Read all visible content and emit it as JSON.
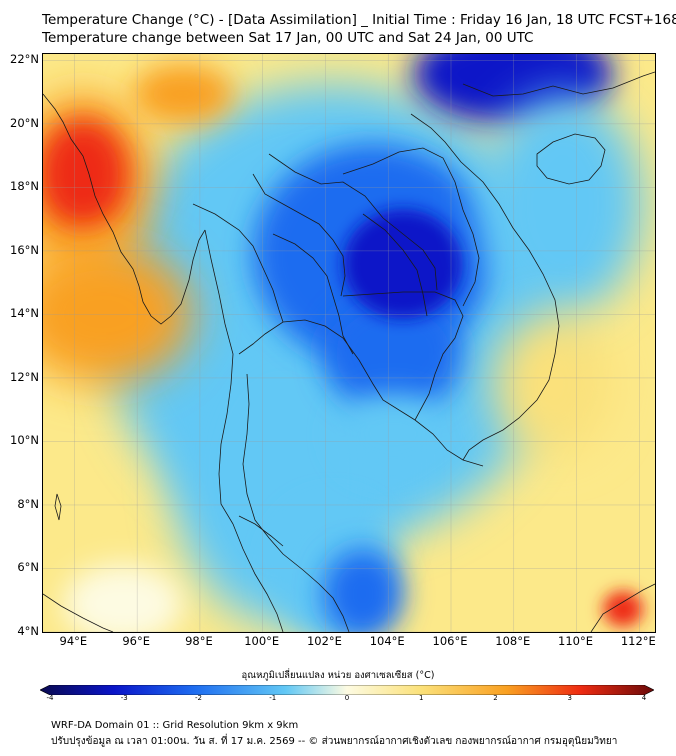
{
  "title": {
    "line1": "Temperature Change (°C) - [Data Assimilation] _ Initial Time : Friday 16 Jan, 18 UTC FCST+168",
    "line2": "Temperature change between Sat 17 Jan, 00 UTC and Sat 24 Jan, 00 UTC"
  },
  "map": {
    "lat_labels": [
      "22°N",
      "20°N",
      "18°N",
      "16°N",
      "14°N",
      "12°N",
      "10°N",
      "8°N",
      "6°N",
      "4°N"
    ],
    "lon_labels": [
      "94°E",
      "96°E",
      "98°E",
      "100°E",
      "102°E",
      "104°E",
      "106°E",
      "108°E",
      "110°E",
      "112°E"
    ],
    "lat_range": [
      4,
      22.2
    ],
    "lon_range": [
      93,
      112.5
    ],
    "colors": {
      "cold_dark": "#0a14c8",
      "cold": "#1e6cf0",
      "cool": "#62c8f5",
      "neutral": "#fdfbe2",
      "warm": "#fbe17a",
      "warmer": "#f9a022",
      "hot": "#ee2c12",
      "ocean_fill": "#fce98a",
      "coastline": "#1a1a1a",
      "grid": "#9a9a9a"
    }
  },
  "colorbar": {
    "label": "อุณหภูมิเปลี่ยนแปลง หน่วย องศาเซลเซียส (°C)",
    "ticks": [
      "-4",
      "-3",
      "-2",
      "-1",
      "0",
      "1",
      "2",
      "3",
      "4"
    ],
    "min": -4,
    "max": 4
  },
  "footer": {
    "line1": "WRF-DA Domain 01 :: Grid Resolution 9km x 9km",
    "line2": "ปรับปรุงข้อมูล ณ เวลา 01:00น. วัน ส. ที่ 17 ม.ค. 2569 -- © ส่วนพยากรณ์อากาศเชิงตัวเลข กองพยากรณ์อากาศ กรมอุตุนิยมวิทยา"
  }
}
